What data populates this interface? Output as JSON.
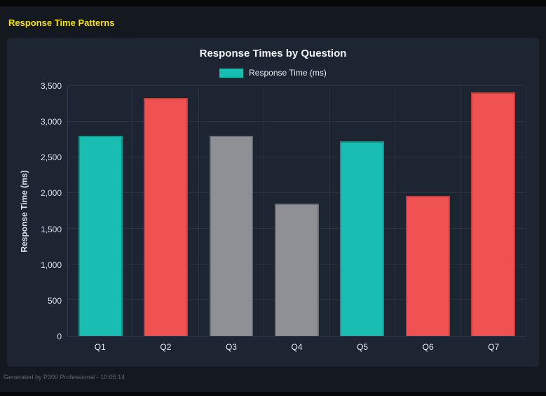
{
  "page": {
    "title": "Response Time Patterns",
    "title_color": "#f7e017",
    "footer": "Generated by P300 Professional - 10:05:14"
  },
  "chart": {
    "title": "Response Times by Question"
  },
  "chart_data": {
    "type": "bar",
    "title": "Response Times by Question",
    "categories": [
      "Q1",
      "Q2",
      "Q3",
      "Q4",
      "Q5",
      "Q6",
      "Q7"
    ],
    "values": [
      2800,
      3330,
      2800,
      1850,
      2730,
      1960,
      3410
    ],
    "bar_colors": [
      "#19bdb2",
      "#f05252",
      "#8e9096",
      "#8e9096",
      "#19bdb2",
      "#f05252",
      "#f05252"
    ],
    "bar_border_colors": [
      "#12968d",
      "#c43c3c",
      "#6c6e74",
      "#6c6e74",
      "#12968d",
      "#c43c3c",
      "#c43c3c"
    ],
    "xlabel": "",
    "ylabel": "Response Time (ms)",
    "ylim": [
      0,
      3500
    ],
    "yticks": [
      0,
      500,
      1000,
      1500,
      2000,
      2500,
      3000,
      3500
    ],
    "grid": true,
    "legend": [
      {
        "label": "Response Time (ms)",
        "color": "#19bdb2"
      }
    ],
    "legend_position": "top"
  }
}
